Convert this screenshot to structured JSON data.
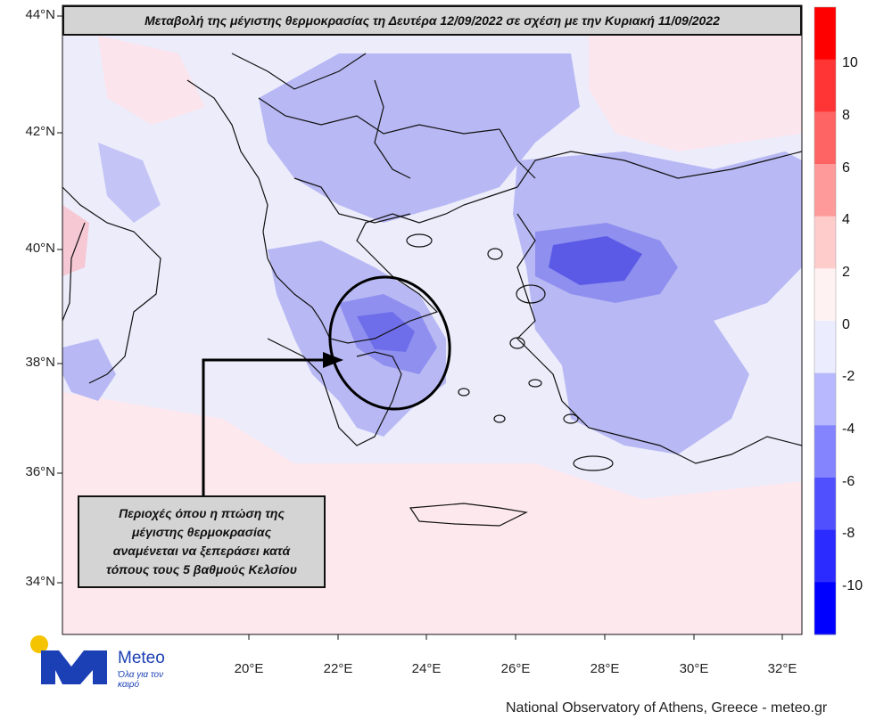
{
  "title": "Μεταβολή της μέγιστης θερμοκρασίας τη Δευτέρα 12/09/2022 σε σχέση με την Κυριακή 11/09/2022",
  "callout": {
    "lines": [
      "Περιοχές όπου η πτώση της",
      "μέγιστης θερμοκρασίας",
      "αναμένεται να ξεπεράσει κατά",
      "τόπους τους 5 βαθμούς Κελσίου"
    ]
  },
  "lat_labels": [
    "44°N",
    "42°N",
    "40°N",
    "38°N",
    "36°N",
    "34°N"
  ],
  "lon_labels": [
    "20°E",
    "22°E",
    "24°E",
    "26°E",
    "28°E",
    "30°E",
    "32°E"
  ],
  "colorbar": {
    "labels": [
      "10",
      "8",
      "6",
      "4",
      "2",
      "0",
      "-2",
      "-4",
      "-6",
      "-8",
      "-10"
    ],
    "colors": [
      "#ff0000",
      "#ff3434",
      "#ff6464",
      "#ff9a9a",
      "#ffcccc",
      "#fff2f2",
      "#ececff",
      "#b8b8ff",
      "#8484ff",
      "#5050ff",
      "#2b2bff",
      "#0000ff"
    ]
  },
  "logo": {
    "name": "Meteo",
    "tagline": "Όλα για τον καιρό",
    "accent": "#f5c400",
    "brand": "#1b3fb5"
  },
  "footer": "National Observatory of Athens, Greece - meteo.gr",
  "legend_colors": {
    "background": "#ececfb",
    "cool_light": "#b8b8f4",
    "cool_mid": "#8f8ff0",
    "cool_strong": "#5a5ae6",
    "warm_light": "#ffe4e4"
  }
}
